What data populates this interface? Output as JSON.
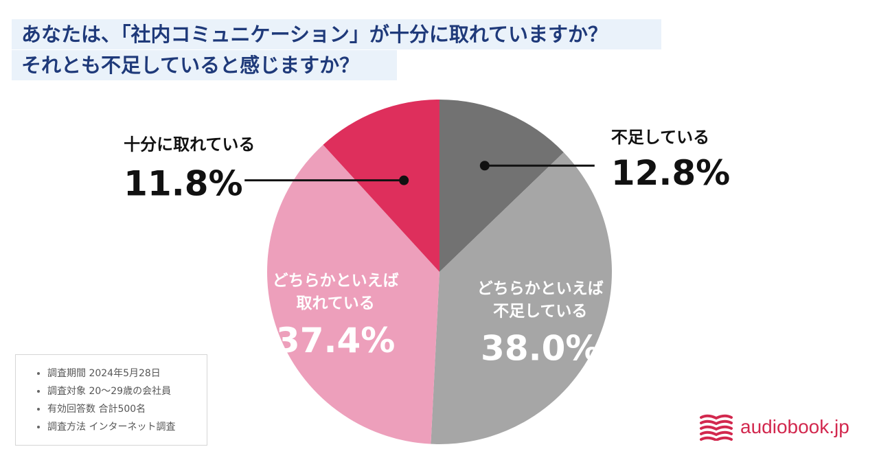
{
  "title_lines": [
    "あなたは、「社内コミュニケーション」が十分に取れていますか？",
    "それとも不足していると感じますか？"
  ],
  "chart_data": {
    "type": "pie",
    "start_angle_deg": 0,
    "direction": "clockwise",
    "slices": [
      {
        "label": "不足している",
        "label_lines": [
          "不足している"
        ],
        "value": 12.8,
        "value_label": "12.8%",
        "color": "#727272",
        "label_position": "outside-right"
      },
      {
        "label": "どちらかといえば不足している",
        "label_lines": [
          "どちらかといえば",
          "不足している"
        ],
        "value": 38.0,
        "value_label": "38.0%",
        "color": "#a6a6a6",
        "label_position": "inside"
      },
      {
        "label": "どちらかといえば取れている",
        "label_lines": [
          "どちらかといえば",
          "取れている"
        ],
        "value": 37.4,
        "value_label": "37.4%",
        "color": "#ed9fbb",
        "label_position": "inside"
      },
      {
        "label": "十分に取れている",
        "label_lines": [
          "十分に取れている"
        ],
        "value": 11.8,
        "value_label": "11.8%",
        "color": "#de2f5c",
        "label_position": "outside-left"
      }
    ]
  },
  "survey_info": [
    "調査期間 2024年5月28日",
    "調査対象 20〜29歳の会社員",
    "有効回答数 合計500名",
    "調査方法 インターネット調査"
  ],
  "brand": {
    "name": "audiobook.jp",
    "color": "#d2284e",
    "icon": "audiobook-logo-icon"
  }
}
